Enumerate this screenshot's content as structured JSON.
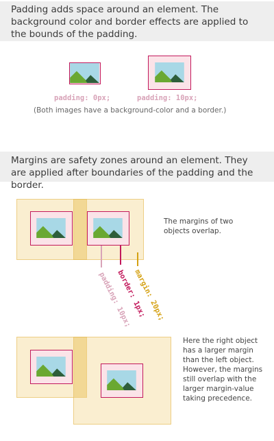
{
  "section1": {
    "text": "Padding adds space around an element. The background color and border effects are applied to the bounds of the padding.",
    "left_code": "padding: 0px;",
    "right_code": "padding: 10px;",
    "note": "(Both images have a background-color and a border.)"
  },
  "section2": {
    "text": "Margins are safety zones around an element. They are applied after boundaries of the padding and the border.",
    "overlap_note": "The margins of two objects overlap.",
    "label_padding": "padding: 10px;",
    "label_border": "border: 1px;",
    "label_margin": "margin: 20px;",
    "larger_margin_note": "Here the right object has a larger margin than the left object. However, the margins still overlap with the larger margin-value taking precedence."
  },
  "colors": {
    "border": "#c2185b",
    "padding": "#fbe3e8",
    "margin": "#f0cd78",
    "sky": "#a8d8e6",
    "hill_green": "#6aa832",
    "hill_dark": "#2e5e3a"
  }
}
